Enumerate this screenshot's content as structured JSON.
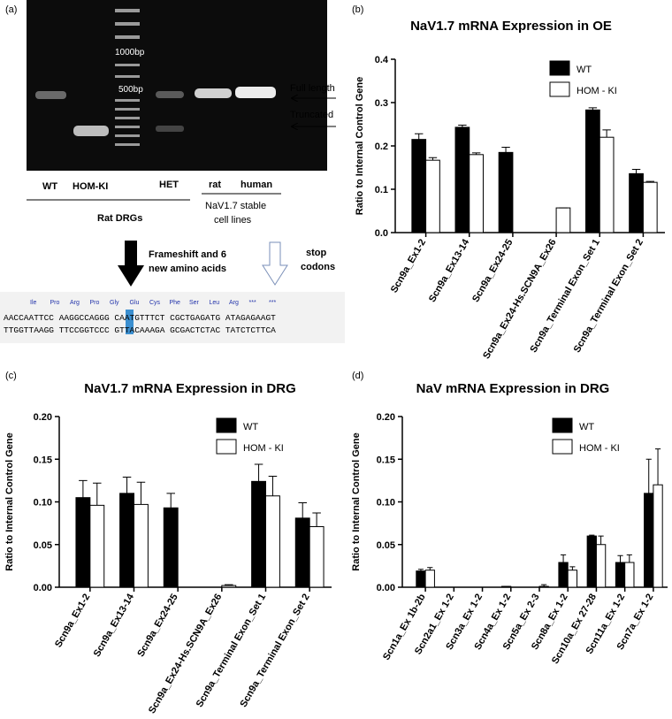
{
  "panel_labels": [
    "(a)",
    "(b)",
    "(c)",
    "(d)"
  ],
  "gel": {
    "ladder": [
      "1000bp",
      "500bp"
    ],
    "bands": [
      "Full length",
      "Truncated"
    ],
    "lanes": [
      "WT",
      "HOM-KI",
      "HET",
      "rat",
      "human"
    ],
    "group1": "Rat DRGs",
    "group2": [
      "NaV1.7 stable",
      "cell lines"
    ],
    "arrow1": [
      "Frameshift and 6",
      "new amino acids"
    ],
    "arrow2": [
      "stop",
      "codons"
    ],
    "amino_acids": [
      "Ile",
      "Pro",
      "Arg",
      "Pro",
      "Gly",
      "Glu",
      "Cys",
      "Phe",
      "Ser",
      "Leu",
      "Arg",
      "***",
      "***"
    ],
    "sequence": [
      "AACCAATTCC AAGGCCAGGG CAATGTTTCT CGCTGAGATG ATAGAGAAGT",
      "TTGGTTAAGG TTCCGGTCCC GTTACAAAGA GCGACTCTAC TATCTCTTCA"
    ]
  },
  "chart_data": [
    {
      "type": "bar",
      "title": "NaV1.7 mRNA Expression in OE",
      "ylabel": "Ratio to Internal Control Gene",
      "categories": [
        "Scn9a_Ex1-2",
        "Scn9a_Ex13-14",
        "Scn9a_Ex24-25",
        "Scn9a_Ex24-Hs.SCN9A_Ex26",
        "Scn9a_Terminal Exon_Set 1",
        "Scn9a_Terminal Exon_Set 2"
      ],
      "series": [
        {
          "name": "WT",
          "color": "#000000",
          "values": [
            0.215,
            0.243,
            0.185,
            0,
            0.283,
            0.136
          ],
          "errors": [
            0.013,
            0.005,
            0.012,
            0,
            0.005,
            0.01
          ]
        },
        {
          "name": "HOM - KI",
          "color": "#ffffff",
          "values": [
            0.167,
            0.18,
            0,
            0.057,
            0.22,
            0.116
          ],
          "errors": [
            0.006,
            0.004,
            0,
            0,
            0.017,
            0.002
          ]
        }
      ],
      "ylim": [
        0,
        0.4
      ],
      "yticks": [
        {
          "value": 0,
          "label": "0.0"
        },
        0.1,
        0.2,
        0.3,
        0.4
      ],
      "legend": "upper right"
    },
    {
      "type": "bar",
      "title": "NaV1.7 mRNA Expression in DRG",
      "ylabel": "Ratio to Internal Control Gene",
      "categories": [
        "Scn9a_Ex1-2",
        "Scn9a_Ex13-14",
        "Scn9a_Ex24-25",
        "Scn9a_Ex24-Hs.SCN9A_Ex26",
        "Scn9a_Terminal Exon_Set 1",
        "Scn9a_Terminal Exon_Set 2"
      ],
      "series": [
        {
          "name": "WT",
          "color": "#000000",
          "values": [
            0.105,
            0.11,
            0.093,
            0,
            0.124,
            0.081
          ],
          "errors": [
            0.02,
            0.019,
            0.017,
            0,
            0.02,
            0.018
          ]
        },
        {
          "name": "HOM - KI",
          "color": "#ffffff",
          "values": [
            0.096,
            0.097,
            0,
            0.002,
            0.107,
            0.071
          ],
          "errors": [
            0.026,
            0.026,
            0,
            0.001,
            0.023,
            0.016
          ]
        }
      ],
      "ylim": [
        0,
        0.2
      ],
      "yticks": [
        {
          "value": 0,
          "label": "0.00"
        },
        0.05,
        {
          "value": 0.1,
          "label": "0.10"
        },
        0.15,
        {
          "value": 0.2,
          "label": "0.20"
        }
      ],
      "legend": "upper right"
    },
    {
      "type": "bar",
      "title": "NaV mRNA Expression in DRG",
      "ylabel": "Ratio to Internal Control Gene",
      "categories": [
        "Scn1a_Ex 1b-2b",
        "Scn2a1_Ex 1-2",
        "Scn3a_Ex 1-2",
        "Scn4a_Ex 1-2",
        "Scn5a_Ex 2-3",
        "Scn8a_Ex 1-2",
        "Scn10a_Ex 27-28",
        "Scn11a_Ex 1-2",
        "Scn7a_Ex 1-2"
      ],
      "series": [
        {
          "name": "WT",
          "color": "#000000",
          "values": [
            0.019,
            0,
            0,
            0.001,
            0,
            0.029,
            0.06,
            0.029,
            0.11
          ],
          "errors": [
            0.002,
            0,
            0,
            0,
            0,
            0.009,
            0.001,
            0.008,
            0.04
          ]
        },
        {
          "name": "HOM - KI",
          "color": "#ffffff",
          "values": [
            0.02,
            0,
            0,
            0,
            0.001,
            0.02,
            0.05,
            0.029,
            0.12
          ],
          "errors": [
            0.003,
            0,
            0,
            0,
            0.002,
            0.004,
            0.01,
            0.009,
            0.042
          ]
        }
      ],
      "ylim": [
        0,
        0.2
      ],
      "yticks": [
        {
          "value": 0,
          "label": "0.00"
        },
        0.05,
        {
          "value": 0.1,
          "label": "0.10"
        },
        0.15,
        {
          "value": 0.2,
          "label": "0.20"
        }
      ],
      "legend": "upper right"
    }
  ]
}
